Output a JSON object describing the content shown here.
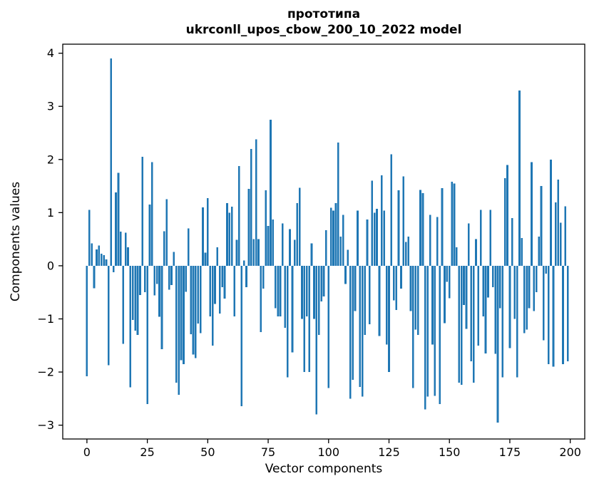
{
  "figure": {
    "title_line1": "прототипа",
    "title_line2": "ukrconll_upos_cbow_200_10_2022 model"
  },
  "chart_data": {
    "type": "bar",
    "title": "прототипа\nukrconll_upos_cbow_200_10_2022 model",
    "xlabel": "Vector components",
    "ylabel": "Components values",
    "x_is_component_index": true,
    "x_start": 0,
    "x_ticks": [
      0,
      25,
      50,
      75,
      100,
      125,
      150,
      175,
      200
    ],
    "y_ticks": [
      {
        "v": -3,
        "label": "−3"
      },
      {
        "v": -2,
        "label": "−2"
      },
      {
        "v": -1,
        "label": "−1"
      },
      {
        "v": 0,
        "label": "0"
      },
      {
        "v": 1,
        "label": "1"
      },
      {
        "v": 2,
        "label": "2"
      },
      {
        "v": 3,
        "label": "3"
      },
      {
        "v": 4,
        "label": "4"
      }
    ],
    "xlim": [
      -10,
      206
    ],
    "ylim": [
      -3.26,
      4.17
    ],
    "grid": false,
    "legend_position": "none",
    "bar_color": "#1f77b4",
    "values": [
      -2.08,
      1.05,
      0.42,
      -0.42,
      0.31,
      0.38,
      0.23,
      0.2,
      0.12,
      -1.87,
      3.9,
      -0.12,
      1.38,
      1.75,
      0.64,
      -1.47,
      0.62,
      0.35,
      -2.29,
      -1.02,
      -1.22,
      -1.3,
      -0.55,
      2.05,
      -0.5,
      -2.6,
      1.15,
      1.95,
      -0.56,
      -0.34,
      -0.96,
      -1.57,
      0.65,
      1.25,
      -0.45,
      -0.36,
      0.26,
      -2.2,
      -2.43,
      -1.78,
      -1.85,
      -0.49,
      0.7,
      -1.29,
      -1.67,
      -1.74,
      -1.09,
      -1.27,
      1.1,
      0.25,
      1.27,
      -0.95,
      -1.5,
      -0.72,
      0.35,
      -0.9,
      -0.4,
      -0.62,
      1.18,
      1.0,
      1.11,
      -0.95,
      0.49,
      1.88,
      -2.64,
      0.1,
      -0.4,
      1.45,
      2.2,
      0.5,
      2.38,
      0.5,
      -1.25,
      -0.43,
      1.42,
      0.75,
      2.75,
      0.87,
      -0.8,
      -0.95,
      -0.95,
      0.8,
      -1.17,
      -2.1,
      0.69,
      -1.63,
      0.49,
      1.18,
      1.47,
      -1.0,
      -2.0,
      -0.95,
      -2.0,
      0.42,
      -1.0,
      -2.8,
      -1.3,
      -0.67,
      -0.58,
      0.67,
      -2.3,
      1.09,
      1.04,
      1.18,
      2.32,
      0.55,
      0.96,
      -0.34,
      0.3,
      -2.5,
      -2.15,
      -0.85,
      1.04,
      -2.28,
      -2.46,
      -1.3,
      0.87,
      -1.1,
      1.6,
      1.0,
      1.07,
      -1.32,
      1.7,
      1.04,
      -1.48,
      -2.0,
      2.1,
      -0.65,
      -0.83,
      1.42,
      -0.43,
      1.68,
      0.45,
      0.55,
      -0.85,
      -2.3,
      -1.2,
      -1.3,
      1.43,
      1.37,
      -2.7,
      -2.46,
      0.96,
      -1.48,
      -2.45,
      0.92,
      -2.6,
      1.46,
      -1.08,
      -0.3,
      -0.61,
      1.58,
      1.55,
      0.35,
      -2.2,
      -2.24,
      -0.74,
      -1.19,
      0.8,
      -1.8,
      -2.2,
      0.5,
      -1.5,
      1.05,
      -0.95,
      -1.65,
      -0.6,
      1.05,
      -0.4,
      -1.66,
      -2.95,
      -0.8,
      -2.1,
      1.65,
      1.9,
      -1.55,
      0.9,
      -1.0,
      -2.1,
      3.3,
      0.52,
      -1.27,
      -1.2,
      -0.8,
      1.95,
      -0.85,
      -0.5,
      0.55,
      1.5,
      -1.4,
      -0.15,
      -1.85,
      2.0,
      -1.9,
      1.19,
      1.62,
      0.81,
      -1.85,
      1.12,
      -1.8
    ]
  }
}
